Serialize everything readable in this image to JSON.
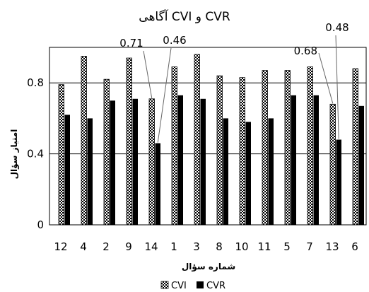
{
  "chart_data": {
    "type": "bar",
    "title": "CVR و CVI آگاهی",
    "xlabel": "شماره سؤال",
    "ylabel": "امتیاز سؤال",
    "categories": [
      "12",
      "4",
      "2",
      "9",
      "14",
      "1",
      "3",
      "8",
      "10",
      "11",
      "5",
      "7",
      "13",
      "6"
    ],
    "series": [
      {
        "name": "CVI",
        "values": [
          0.79,
          0.95,
          0.82,
          0.94,
          0.71,
          0.89,
          0.96,
          0.84,
          0.83,
          0.87,
          0.87,
          0.89,
          0.68,
          0.88
        ]
      },
      {
        "name": "CVR",
        "values": [
          0.62,
          0.6,
          0.7,
          0.71,
          0.46,
          0.73,
          0.71,
          0.6,
          0.58,
          0.6,
          0.73,
          0.73,
          0.48,
          0.67
        ]
      }
    ],
    "ylim": [
      0,
      1.0
    ],
    "yticks": [
      {
        "value": 0,
        "label": "0"
      },
      {
        "value": 0.4,
        "label": "0.4"
      },
      {
        "value": 0.8,
        "label": "0.8"
      }
    ],
    "gridlines": [
      0.4,
      0.8
    ],
    "legend_position": "bottom-center",
    "annotations": [
      {
        "text": "0.71",
        "category": "14",
        "series": "CVI"
      },
      {
        "text": "0.46",
        "category": "14",
        "series": "CVR"
      },
      {
        "text": "0.68",
        "category": "13",
        "series": "CVI"
      },
      {
        "text": "0.48",
        "category": "13",
        "series": "CVR"
      }
    ],
    "colors": {
      "cvr": "#000000",
      "cvi_pattern": "#000000",
      "grid": "#000000"
    }
  }
}
